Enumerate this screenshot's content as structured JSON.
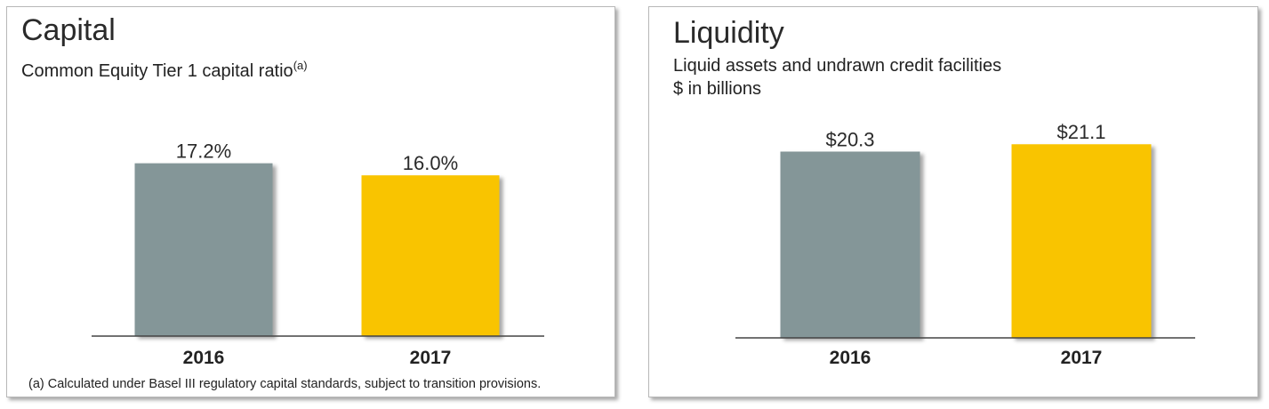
{
  "panels": [
    {
      "title": "Capital",
      "subtitle": "Common Equity Tier 1 capital ratio",
      "subtitle_superscript": "(a)",
      "subtitle_line2": "",
      "footnote": "(a) Calculated under Basel III regulatory capital standards, subject to transition provisions."
    },
    {
      "title": "Liquidity",
      "subtitle": "Liquid assets and undrawn credit facilities",
      "subtitle_superscript": "",
      "subtitle_line2": "$ in billions",
      "footnote": ""
    }
  ],
  "colors": {
    "series_2016": "#849698",
    "series_2017": "#f9c400",
    "axis": "#444444"
  },
  "chart_data": [
    {
      "type": "bar",
      "title": "Capital",
      "subtitle": "Common Equity Tier 1 capital ratio",
      "categories": [
        "2016",
        "2017"
      ],
      "values": [
        17.2,
        16.0
      ],
      "value_labels": [
        "17.2%",
        "16.0%"
      ],
      "colors": [
        "#849698",
        "#f9c400"
      ],
      "ylim": [
        0,
        20
      ],
      "grid": false,
      "legend": "none"
    },
    {
      "type": "bar",
      "title": "Liquidity",
      "subtitle": "Liquid assets and undrawn credit facilities",
      "ylabel": "$ in billions",
      "categories": [
        "2016",
        "2017"
      ],
      "values": [
        20.3,
        21.1
      ],
      "value_labels": [
        "$20.3",
        "$21.1"
      ],
      "colors": [
        "#849698",
        "#f9c400"
      ],
      "ylim": [
        0,
        23
      ],
      "grid": false,
      "legend": "none"
    }
  ]
}
